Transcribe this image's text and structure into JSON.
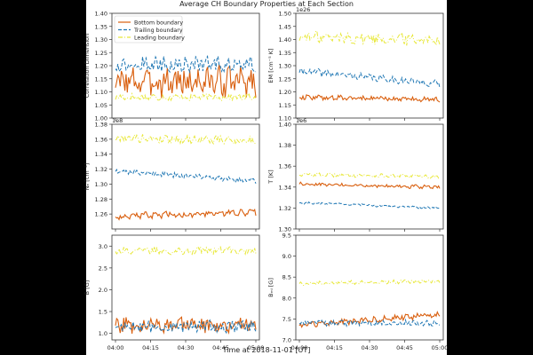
{
  "figure": {
    "title": "Average CH Boundary Properties at Each Section",
    "xlabel": "Time at 2018-11-01 [UT]"
  },
  "colors": {
    "bottom": "#d95f0e",
    "trailing": "#1f77b4",
    "leading": "#e8e83a",
    "background": "#000000",
    "panel": "#ffffff"
  },
  "legend": [
    {
      "label": "Bottom boundary",
      "style": "solid",
      "color_key": "bottom"
    },
    {
      "label": "Trailing boundary",
      "style": "dashed",
      "color_key": "trailing"
    },
    {
      "label": "Leading boundary",
      "style": "dashdot",
      "color_key": "leading"
    }
  ],
  "chart_data": [
    {
      "type": "line",
      "ylabel": "Correlation Dimension",
      "ylim": [
        1.0,
        1.4
      ],
      "yticks": [
        "1.00",
        "1.05",
        "1.10",
        "1.15",
        "1.20",
        "1.25",
        "1.30",
        "1.35",
        "1.40"
      ],
      "offset_label": "",
      "legend": "top-left",
      "series": [
        {
          "name": "Bottom boundary",
          "key": "bottom",
          "mean": 1.14,
          "amp": 0.05
        },
        {
          "name": "Trailing boundary",
          "key": "trailing",
          "mean": 1.205,
          "amp": 0.025
        },
        {
          "name": "Leading boundary",
          "key": "leading",
          "mean": 1.08,
          "amp": 0.012
        }
      ]
    },
    {
      "type": "line",
      "ylabel": "EM [cm⁻⁵ K]",
      "ylim": [
        1.1,
        1.5
      ],
      "yticks": [
        "1.10",
        "1.15",
        "1.20",
        "1.25",
        "1.30",
        "1.35",
        "1.40",
        "1.45",
        "1.50"
      ],
      "offset_label": "1e26",
      "series": [
        {
          "name": "Bottom boundary",
          "key": "bottom",
          "start": 1.18,
          "end": 1.17,
          "amp": 0.008
        },
        {
          "name": "Trailing boundary",
          "key": "trailing",
          "start": 1.28,
          "end": 1.23,
          "amp": 0.012
        },
        {
          "name": "Leading boundary",
          "key": "leading",
          "start": 1.41,
          "end": 1.4,
          "amp": 0.02
        }
      ]
    },
    {
      "type": "line",
      "ylabel": "Nₑ [cm⁻³]",
      "ylim": [
        1.24,
        1.38
      ],
      "yticks": [
        "1.26",
        "1.28",
        "1.30",
        "1.32",
        "1.34",
        "1.36",
        "1.38"
      ],
      "offset_label": "1e8",
      "series": [
        {
          "name": "Bottom boundary",
          "key": "bottom",
          "start": 1.257,
          "end": 1.262,
          "amp": 0.004
        },
        {
          "name": "Trailing boundary",
          "key": "trailing",
          "start": 1.318,
          "end": 1.304,
          "amp": 0.003
        },
        {
          "name": "Leading boundary",
          "key": "leading",
          "start": 1.362,
          "end": 1.358,
          "amp": 0.005
        }
      ]
    },
    {
      "type": "line",
      "ylabel": "T [K]",
      "ylim": [
        1.3,
        1.4
      ],
      "yticks": [
        "1.30",
        "1.32",
        "1.34",
        "1.36",
        "1.38",
        "1.40"
      ],
      "offset_label": "1e6",
      "series": [
        {
          "name": "Bottom boundary",
          "key": "bottom",
          "start": 1.343,
          "end": 1.34,
          "amp": 0.0015
        },
        {
          "name": "Trailing boundary",
          "key": "trailing",
          "start": 1.325,
          "end": 1.32,
          "amp": 0.001
        },
        {
          "name": "Leading boundary",
          "key": "leading",
          "start": 1.352,
          "end": 1.35,
          "amp": 0.0015
        }
      ]
    },
    {
      "type": "line",
      "ylabel": "B [G]",
      "ylim": [
        0.85,
        3.25
      ],
      "yticks": [
        "1.0",
        "1.5",
        "2.0",
        "2.5",
        "3.0"
      ],
      "offset_label": "",
      "series": [
        {
          "name": "Bottom boundary",
          "key": "bottom",
          "mean": 1.2,
          "amp": 0.16
        },
        {
          "name": "Trailing boundary",
          "key": "trailing",
          "mean": 1.15,
          "amp": 0.12
        },
        {
          "name": "Leading boundary",
          "key": "leading",
          "mean": 2.9,
          "amp": 0.08
        }
      ]
    },
    {
      "type": "line",
      "ylabel": "Bₘₗ [G]",
      "ylim": [
        7.0,
        9.5
      ],
      "yticks": [
        "7.0",
        "7.5",
        "8.0",
        "8.5",
        "9.0",
        "9.5"
      ],
      "offset_label": "",
      "series": [
        {
          "name": "Bottom boundary",
          "key": "bottom",
          "start": 7.35,
          "end": 7.6,
          "amp": 0.06
        },
        {
          "name": "Trailing boundary",
          "key": "trailing",
          "start": 7.4,
          "end": 7.4,
          "amp": 0.06
        },
        {
          "name": "Leading boundary",
          "key": "leading",
          "start": 8.35,
          "end": 8.4,
          "amp": 0.04
        }
      ]
    }
  ],
  "xaxis": {
    "ticks": [
      "04:00",
      "04:15",
      "04:30",
      "04:45",
      "05:00"
    ],
    "points": 120
  }
}
